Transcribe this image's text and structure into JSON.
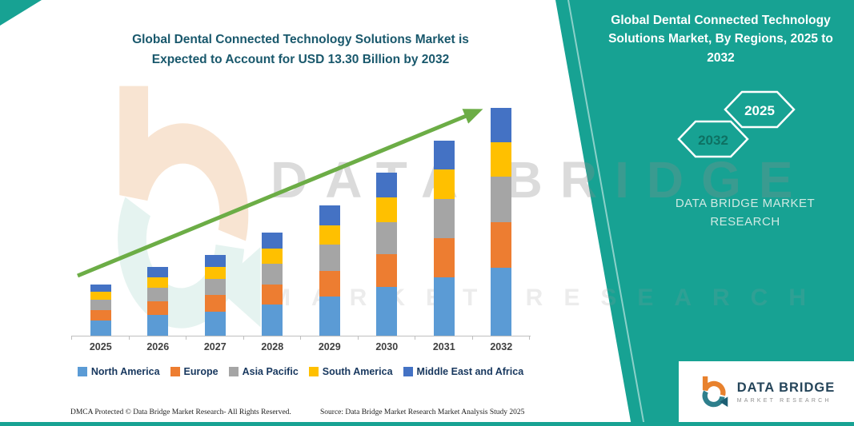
{
  "header": {
    "title_line1": "Global Dental Connected Technology Solutions Market is",
    "title_line2": "Expected to Account for USD 13.30 Billion by 2032"
  },
  "side_panel": {
    "heading": "Global Dental Connected Technology Solutions Market, By Regions, 2025 to 2032",
    "hex_front_year": "2025",
    "hex_back_year": "2032",
    "brand_text": "DATA BRIDGE MARKET RESEARCH"
  },
  "watermark": {
    "line1": "DATA BRIDGE",
    "line2": "MARKET RESEARCH"
  },
  "chart_data": {
    "type": "bar",
    "stacked": true,
    "title": "Global Dental Connected Technology Solutions Market is Expected to Account for USD 13.30 Billion by 2032",
    "unit": "USD Billion (segment values estimated from bar heights; 2032 total stated as 13.30)",
    "categories": [
      "2025",
      "2026",
      "2027",
      "2028",
      "2029",
      "2030",
      "2031",
      "2032"
    ],
    "series": [
      {
        "name": "North America",
        "color": "#5B9BD5",
        "values": [
          0.9,
          1.2,
          1.42,
          1.8,
          2.28,
          2.85,
          3.42,
          3.99
        ]
      },
      {
        "name": "Europe",
        "color": "#ED7D31",
        "values": [
          0.6,
          0.8,
          0.94,
          1.2,
          1.52,
          1.9,
          2.28,
          2.66
        ]
      },
      {
        "name": "Asia Pacific",
        "color": "#A5A5A5",
        "values": [
          0.6,
          0.8,
          0.94,
          1.2,
          1.52,
          1.9,
          2.28,
          2.66
        ]
      },
      {
        "name": "South America",
        "color": "#FFC000",
        "values": [
          0.45,
          0.6,
          0.71,
          0.9,
          1.14,
          1.43,
          1.71,
          2.0
        ]
      },
      {
        "name": "Middle East and Africa",
        "color": "#4472C4",
        "values": [
          0.45,
          0.6,
          0.7,
          0.9,
          1.14,
          1.42,
          1.71,
          1.99
        ]
      }
    ],
    "totals": [
      3.0,
      4.0,
      4.71,
      6.0,
      7.6,
      9.5,
      11.4,
      13.3
    ],
    "ylim": [
      0,
      13.3
    ],
    "grid": false,
    "legend_position": "bottom",
    "trend_arrow": true
  },
  "footer": {
    "dmca": "DMCA Protected © Data Bridge Market Research-  All Rights Reserved.",
    "source": "Source: Data Bridge Market Research  Market Analysis Study 2025"
  },
  "logo": {
    "brand": "DATA BRIDGE",
    "tagline": "MARKET RESEARCH"
  },
  "colors": {
    "teal": "#17A293",
    "arrow_green": "#6CAD46",
    "title_text": "#19586C",
    "legend_text": "#17375E",
    "hex_back_text": "#0E7163",
    "hex_front_text": "#FFFFFF"
  }
}
